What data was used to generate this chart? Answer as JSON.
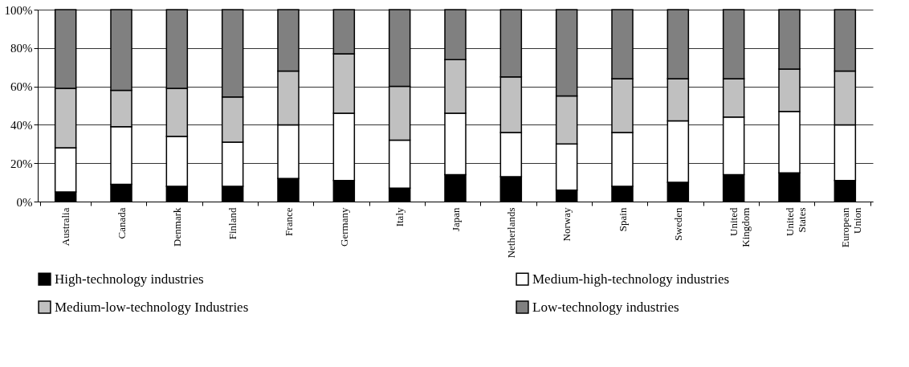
{
  "chart_data": {
    "type": "bar",
    "stacked": true,
    "categories": [
      "Australia",
      "Canada",
      "Denmark",
      "Finland",
      "France",
      "Germany",
      "Italy",
      "Japan",
      "Netherlands",
      "Norway",
      "Spain",
      "Sweden",
      "United Kingdom",
      "United States",
      "European Union"
    ],
    "series": [
      {
        "name": "High-technology industries",
        "color": "#000000",
        "values": [
          5,
          9,
          8,
          8,
          12,
          11,
          7,
          14,
          13,
          6,
          8,
          10,
          14,
          15,
          11
        ]
      },
      {
        "name": "Medium-high-technology industries",
        "color": "#ffffff",
        "values": [
          23,
          30,
          26,
          23,
          28,
          35,
          25,
          32,
          23,
          24,
          28,
          32,
          30,
          32,
          29
        ]
      },
      {
        "name": "Medium-low-technology Industries",
        "color": "#c0c0c0",
        "values": [
          31,
          19,
          25,
          23.5,
          28,
          31,
          28,
          28,
          29,
          25,
          28,
          22,
          20,
          22,
          28
        ]
      },
      {
        "name": "Low-technology industries",
        "color": "#808080",
        "values": [
          41,
          42,
          41,
          45.5,
          32,
          23,
          40,
          26,
          35,
          45,
          36,
          36,
          36,
          31,
          32
        ]
      }
    ],
    "ylim": [
      0,
      100
    ],
    "yticks": [
      {
        "value": 0,
        "label": "0%"
      },
      {
        "value": 20,
        "label": "20%"
      },
      {
        "value": 40,
        "label": "40%"
      },
      {
        "value": 60,
        "label": "60%"
      },
      {
        "value": 80,
        "label": "80%"
      },
      {
        "value": 100,
        "label": "100%"
      }
    ],
    "grid": "y",
    "legend": "bottom"
  }
}
